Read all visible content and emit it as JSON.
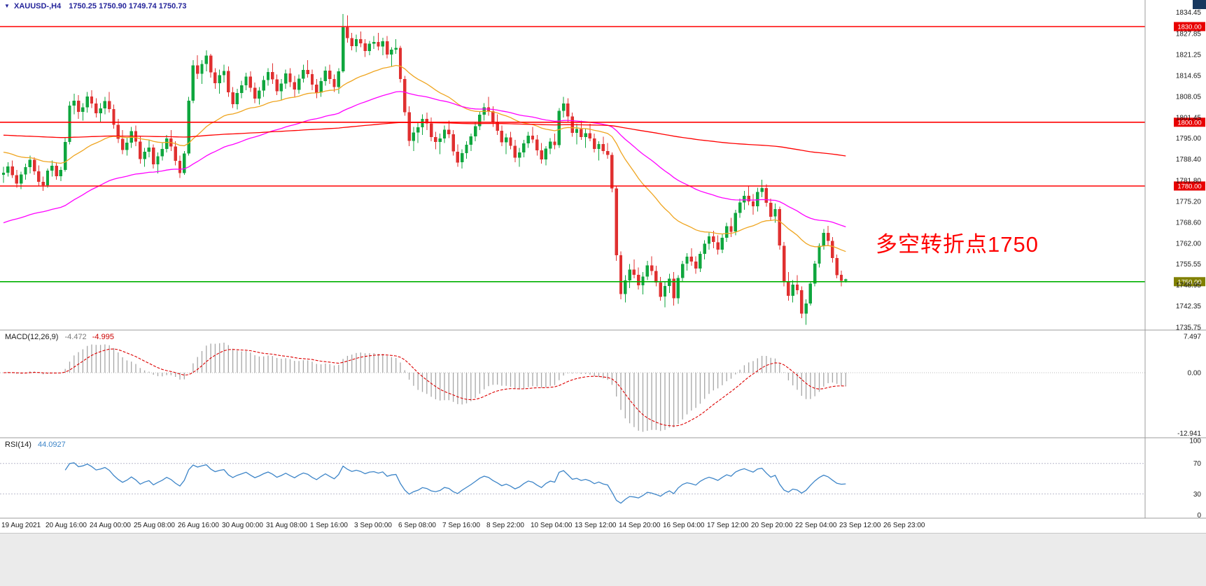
{
  "window": {
    "symbol_label": "XAUUSD-,H4",
    "ohlc_values": "1750.25 1750.90 1749.74 1750.73"
  },
  "annotation": {
    "text": "多空转折点1750",
    "color": "#ff0000"
  },
  "chart_data": {
    "type": "candlestick",
    "title": "XAUUSD- H4 chart with MACD and RSI",
    "symbol": "XAUUSD-",
    "timeframe": "H4",
    "last_ohlc": {
      "open": 1750.25,
      "high": 1750.9,
      "low": 1749.74,
      "close": 1750.73
    },
    "y_range": {
      "price_max": 1837,
      "price_min": 1735
    },
    "colors": {
      "bull": "#0fa63e",
      "bear": "#e03030",
      "background": "#ffffff",
      "separator": "#9c9c9c"
    },
    "price_axis_ticks": [
      "1834.45",
      "1827.85",
      "1821.25",
      "1814.65",
      "1808.05",
      "1801.45",
      "1795.00",
      "1788.40",
      "1781.80",
      "1775.20",
      "1768.60",
      "1762.00",
      "1755.55",
      "1748.95",
      "1742.35",
      "1735.75"
    ],
    "time_labels": [
      "19 Aug 2021",
      "20 Aug 16:00",
      "24 Aug 00:00",
      "25 Aug 08:00",
      "26 Aug 16:00",
      "30 Aug 00:00",
      "31 Aug 08:00",
      "1 Sep 16:00",
      "3 Sep 00:00",
      "6 Sep 08:00",
      "7 Sep 16:00",
      "8 Sep 22:00",
      "10 Sep 04:00",
      "13 Sep 12:00",
      "14 Sep 20:00",
      "16 Sep 04:00",
      "17 Sep 12:00",
      "20 Sep 20:00",
      "22 Sep 04:00",
      "23 Sep 12:00",
      "26 Sep 23:00"
    ],
    "hlines": [
      {
        "price": 1830.0,
        "label": "1830.00",
        "color": "#ff0000",
        "badge": "#e80000"
      },
      {
        "price": 1800.0,
        "label": "1800.00",
        "color": "#ff0000",
        "badge": "#e80000"
      },
      {
        "price": 1780.0,
        "label": "1780.00",
        "color": "#ff0000",
        "badge": "#e80000"
      },
      {
        "price": 1750.0,
        "label": "1750.00",
        "color": "#00b000",
        "badge": "#808000"
      }
    ],
    "moving_averages": [
      {
        "name": "ma-fast-orange",
        "period": 34,
        "seed": 1791,
        "color": "#efa520"
      },
      {
        "name": "ma-mid-magenta",
        "period": 70,
        "seed": 1768,
        "color": "#ff00ff"
      },
      {
        "name": "ma-slow-red",
        "period": 400,
        "seed": 1796,
        "color": "#ff0000"
      }
    ],
    "macd": {
      "label": "MACD(12,26,9)",
      "fast": 12,
      "slow": 26,
      "smoothing": 9,
      "value_main": "-4.472",
      "value_signal": "-4.995",
      "scale_labels": [
        "7.497",
        "0.00",
        "-12.941"
      ],
      "hist_color": "#a6a6a6",
      "signal_color": "#dd0000"
    },
    "rsi": {
      "label": "RSI(14)",
      "period": 14,
      "value": "44.0927",
      "scale_labels": [
        "100",
        "70",
        "30",
        "0"
      ],
      "levels": [
        70,
        30
      ],
      "color": "#3d85c8"
    },
    "candles": [
      [
        1783.5,
        1786.0,
        1781.0,
        1784.2
      ],
      [
        1784.2,
        1787.5,
        1783.0,
        1786.1
      ],
      [
        1786.1,
        1788.0,
        1782.5,
        1783.4
      ],
      [
        1783.4,
        1785.0,
        1779.5,
        1780.8
      ],
      [
        1780.8,
        1784.5,
        1779.0,
        1783.6
      ],
      [
        1783.6,
        1787.0,
        1782.0,
        1785.9
      ],
      [
        1785.9,
        1789.5,
        1784.0,
        1788.2
      ],
      [
        1788.2,
        1789.0,
        1783.5,
        1784.6
      ],
      [
        1784.6,
        1786.5,
        1780.0,
        1781.3
      ],
      [
        1781.3,
        1783.0,
        1778.5,
        1780.2
      ],
      [
        1780.2,
        1785.5,
        1779.5,
        1784.8
      ],
      [
        1784.8,
        1788.0,
        1783.0,
        1786.4
      ],
      [
        1786.4,
        1787.5,
        1782.0,
        1783.1
      ],
      [
        1783.1,
        1786.0,
        1781.5,
        1785.0
      ],
      [
        1785.0,
        1795.0,
        1784.5,
        1793.8
      ],
      [
        1793.8,
        1806.5,
        1793.0,
        1805.2
      ],
      [
        1805.2,
        1809.0,
        1802.5,
        1806.8
      ],
      [
        1806.8,
        1808.5,
        1801.0,
        1803.2
      ],
      [
        1803.2,
        1806.0,
        1800.5,
        1804.7
      ],
      [
        1804.7,
        1809.5,
        1803.0,
        1808.1
      ],
      [
        1808.1,
        1810.0,
        1804.5,
        1805.9
      ],
      [
        1805.9,
        1807.5,
        1801.5,
        1802.8
      ],
      [
        1802.8,
        1806.0,
        1800.0,
        1804.3
      ],
      [
        1804.3,
        1808.0,
        1802.5,
        1806.6
      ],
      [
        1806.6,
        1809.5,
        1803.0,
        1804.1
      ],
      [
        1804.1,
        1805.5,
        1798.0,
        1799.2
      ],
      [
        1799.2,
        1801.0,
        1793.5,
        1794.8
      ],
      [
        1794.8,
        1797.5,
        1790.0,
        1791.3
      ],
      [
        1791.3,
        1795.0,
        1789.5,
        1793.6
      ],
      [
        1793.6,
        1798.5,
        1792.0,
        1797.2
      ],
      [
        1797.2,
        1799.0,
        1792.5,
        1793.9
      ],
      [
        1793.9,
        1795.5,
        1787.0,
        1788.4
      ],
      [
        1788.4,
        1792.0,
        1786.0,
        1790.7
      ],
      [
        1790.7,
        1794.5,
        1789.0,
        1792.1
      ],
      [
        1792.1,
        1793.0,
        1785.5,
        1786.8
      ],
      [
        1786.8,
        1790.5,
        1784.0,
        1789.3
      ],
      [
        1789.3,
        1793.5,
        1788.0,
        1791.6
      ],
      [
        1791.6,
        1796.0,
        1790.5,
        1794.9
      ],
      [
        1794.9,
        1797.5,
        1791.0,
        1792.4
      ],
      [
        1792.4,
        1794.0,
        1786.5,
        1787.9
      ],
      [
        1787.9,
        1789.5,
        1782.5,
        1784.1
      ],
      [
        1784.1,
        1791.0,
        1783.5,
        1790.2
      ],
      [
        1790.2,
        1808.0,
        1789.5,
        1806.7
      ],
      [
        1806.7,
        1819.5,
        1806.0,
        1817.8
      ],
      [
        1817.8,
        1821.0,
        1813.5,
        1815.2
      ],
      [
        1815.2,
        1819.5,
        1812.0,
        1818.3
      ],
      [
        1818.3,
        1822.5,
        1816.0,
        1820.9
      ],
      [
        1820.9,
        1821.5,
        1814.0,
        1815.6
      ],
      [
        1815.6,
        1817.0,
        1810.5,
        1812.2
      ],
      [
        1812.2,
        1816.5,
        1809.0,
        1814.8
      ],
      [
        1814.8,
        1818.0,
        1812.5,
        1816.1
      ],
      [
        1816.1,
        1817.5,
        1808.0,
        1809.4
      ],
      [
        1809.4,
        1811.0,
        1804.5,
        1805.7
      ],
      [
        1805.7,
        1810.5,
        1804.0,
        1809.2
      ],
      [
        1809.2,
        1813.0,
        1807.5,
        1811.6
      ],
      [
        1811.6,
        1815.5,
        1810.0,
        1814.3
      ],
      [
        1814.3,
        1816.0,
        1809.5,
        1810.8
      ],
      [
        1810.8,
        1812.5,
        1806.0,
        1807.4
      ],
      [
        1807.4,
        1811.0,
        1805.5,
        1809.9
      ],
      [
        1809.9,
        1814.5,
        1808.0,
        1813.2
      ],
      [
        1813.2,
        1817.0,
        1811.5,
        1815.8
      ],
      [
        1815.8,
        1818.5,
        1812.0,
        1813.4
      ],
      [
        1813.4,
        1815.0,
        1808.5,
        1809.7
      ],
      [
        1809.7,
        1813.5,
        1807.0,
        1812.1
      ],
      [
        1812.1,
        1816.5,
        1810.5,
        1815.3
      ],
      [
        1815.3,
        1817.0,
        1811.0,
        1812.6
      ],
      [
        1812.6,
        1814.5,
        1808.0,
        1810.2
      ],
      [
        1810.2,
        1815.0,
        1809.0,
        1813.7
      ],
      [
        1813.7,
        1818.0,
        1812.5,
        1816.4
      ],
      [
        1816.4,
        1819.5,
        1814.0,
        1815.1
      ],
      [
        1815.1,
        1816.5,
        1810.0,
        1811.8
      ],
      [
        1811.8,
        1813.5,
        1807.5,
        1809.3
      ],
      [
        1809.3,
        1814.0,
        1808.0,
        1812.9
      ],
      [
        1812.9,
        1817.5,
        1811.5,
        1816.2
      ],
      [
        1816.2,
        1818.0,
        1812.0,
        1813.5
      ],
      [
        1813.5,
        1815.0,
        1809.5,
        1811.0
      ],
      [
        1811.0,
        1817.0,
        1809.0,
        1816.0
      ],
      [
        1816.0,
        1834.0,
        1815.5,
        1829.8
      ],
      [
        1829.8,
        1833.5,
        1825.0,
        1826.4
      ],
      [
        1826.4,
        1828.0,
        1822.5,
        1823.9
      ],
      [
        1823.9,
        1827.5,
        1822.0,
        1826.1
      ],
      [
        1826.1,
        1828.5,
        1823.5,
        1824.7
      ],
      [
        1824.7,
        1826.0,
        1820.5,
        1822.3
      ],
      [
        1822.3,
        1825.5,
        1821.0,
        1824.6
      ],
      [
        1824.6,
        1827.0,
        1823.0,
        1825.2
      ],
      [
        1825.2,
        1828.0,
        1822.5,
        1823.8
      ],
      [
        1823.8,
        1826.5,
        1821.0,
        1825.4
      ],
      [
        1825.4,
        1827.0,
        1820.0,
        1821.2
      ],
      [
        1821.2,
        1823.5,
        1817.5,
        1822.8
      ],
      [
        1822.8,
        1826.0,
        1821.5,
        1823.3
      ],
      [
        1823.3,
        1824.0,
        1812.5,
        1813.6
      ],
      [
        1813.6,
        1814.5,
        1802.0,
        1803.1
      ],
      [
        1803.1,
        1805.0,
        1792.5,
        1794.2
      ],
      [
        1794.2,
        1798.5,
        1791.0,
        1796.8
      ],
      [
        1796.8,
        1800.0,
        1793.5,
        1798.4
      ],
      [
        1798.4,
        1802.5,
        1796.0,
        1801.1
      ],
      [
        1801.1,
        1803.0,
        1797.5,
        1799.6
      ],
      [
        1799.6,
        1801.5,
        1794.0,
        1795.3
      ],
      [
        1795.3,
        1797.0,
        1791.5,
        1793.8
      ],
      [
        1793.8,
        1796.5,
        1790.0,
        1794.9
      ],
      [
        1794.9,
        1799.0,
        1793.5,
        1797.7
      ],
      [
        1797.7,
        1800.5,
        1795.0,
        1796.2
      ],
      [
        1796.2,
        1797.5,
        1789.5,
        1790.8
      ],
      [
        1790.8,
        1793.0,
        1786.0,
        1787.4
      ],
      [
        1787.4,
        1791.5,
        1785.5,
        1790.3
      ],
      [
        1790.3,
        1794.0,
        1788.5,
        1792.9
      ],
      [
        1792.9,
        1796.5,
        1791.0,
        1795.6
      ],
      [
        1795.6,
        1800.0,
        1794.0,
        1798.8
      ],
      [
        1798.8,
        1803.5,
        1797.5,
        1802.4
      ],
      [
        1802.4,
        1806.0,
        1800.5,
        1804.7
      ],
      [
        1804.7,
        1808.0,
        1802.0,
        1803.5
      ],
      [
        1803.5,
        1805.0,
        1798.5,
        1800.1
      ],
      [
        1800.1,
        1802.5,
        1796.0,
        1797.3
      ],
      [
        1797.3,
        1799.0,
        1792.5,
        1793.7
      ],
      [
        1793.7,
        1796.5,
        1790.0,
        1795.2
      ],
      [
        1795.2,
        1797.0,
        1791.5,
        1792.6
      ],
      [
        1792.6,
        1794.5,
        1787.5,
        1788.9
      ],
      [
        1788.9,
        1792.0,
        1786.0,
        1790.5
      ],
      [
        1790.5,
        1794.5,
        1789.0,
        1793.4
      ],
      [
        1793.4,
        1797.0,
        1792.0,
        1795.8
      ],
      [
        1795.8,
        1798.5,
        1793.5,
        1794.6
      ],
      [
        1794.6,
        1796.0,
        1789.5,
        1791.2
      ],
      [
        1791.2,
        1793.5,
        1787.0,
        1788.3
      ],
      [
        1788.3,
        1792.5,
        1786.5,
        1791.7
      ],
      [
        1791.7,
        1795.0,
        1790.0,
        1793.9
      ],
      [
        1793.9,
        1796.5,
        1791.5,
        1792.8
      ],
      [
        1792.8,
        1804.5,
        1792.0,
        1803.6
      ],
      [
        1803.6,
        1808.0,
        1801.5,
        1805.9
      ],
      [
        1805.9,
        1807.5,
        1800.0,
        1801.8
      ],
      [
        1801.8,
        1803.0,
        1795.5,
        1796.7
      ],
      [
        1796.7,
        1799.5,
        1793.0,
        1797.9
      ],
      [
        1797.9,
        1800.5,
        1794.5,
        1795.4
      ],
      [
        1795.4,
        1798.0,
        1792.0,
        1796.6
      ],
      [
        1796.6,
        1799.5,
        1794.0,
        1794.9
      ],
      [
        1794.9,
        1796.5,
        1790.5,
        1791.6
      ],
      [
        1791.6,
        1794.0,
        1788.0,
        1793.2
      ],
      [
        1793.2,
        1795.5,
        1790.0,
        1791.0
      ],
      [
        1791.0,
        1793.5,
        1788.5,
        1789.8
      ],
      [
        1789.8,
        1790.5,
        1778.0,
        1779.2
      ],
      [
        1779.2,
        1780.0,
        1756.5,
        1758.3
      ],
      [
        1758.3,
        1759.5,
        1744.5,
        1746.1
      ],
      [
        1746.1,
        1752.0,
        1743.5,
        1750.4
      ],
      [
        1750.4,
        1755.5,
        1748.0,
        1753.8
      ],
      [
        1753.8,
        1757.0,
        1751.0,
        1752.2
      ],
      [
        1752.2,
        1754.5,
        1747.5,
        1748.9
      ],
      [
        1748.9,
        1753.0,
        1746.0,
        1751.6
      ],
      [
        1751.6,
        1756.5,
        1750.5,
        1755.1
      ],
      [
        1755.1,
        1758.0,
        1752.0,
        1753.4
      ],
      [
        1753.4,
        1755.0,
        1748.5,
        1749.7
      ],
      [
        1749.7,
        1751.5,
        1744.0,
        1745.3
      ],
      [
        1745.3,
        1750.0,
        1742.0,
        1748.6
      ],
      [
        1748.6,
        1752.5,
        1746.5,
        1750.9
      ],
      [
        1750.9,
        1753.0,
        1742.5,
        1744.8
      ],
      [
        1744.8,
        1752.0,
        1743.0,
        1751.2
      ],
      [
        1751.2,
        1756.5,
        1750.0,
        1755.6
      ],
      [
        1755.6,
        1759.0,
        1753.5,
        1757.8
      ],
      [
        1757.8,
        1760.5,
        1755.0,
        1756.3
      ],
      [
        1756.3,
        1758.0,
        1752.5,
        1754.1
      ],
      [
        1754.1,
        1759.5,
        1753.0,
        1758.7
      ],
      [
        1758.7,
        1763.0,
        1757.0,
        1761.9
      ],
      [
        1761.9,
        1765.5,
        1760.0,
        1764.2
      ],
      [
        1764.2,
        1766.0,
        1760.5,
        1762.4
      ],
      [
        1762.4,
        1764.5,
        1758.5,
        1760.1
      ],
      [
        1760.1,
        1765.0,
        1759.0,
        1763.8
      ],
      [
        1763.8,
        1768.5,
        1762.5,
        1767.4
      ],
      [
        1767.4,
        1770.0,
        1764.0,
        1765.7
      ],
      [
        1765.7,
        1772.5,
        1764.5,
        1771.6
      ],
      [
        1771.6,
        1776.0,
        1770.0,
        1774.8
      ],
      [
        1774.8,
        1778.5,
        1772.5,
        1776.9
      ],
      [
        1776.9,
        1780.0,
        1774.0,
        1775.2
      ],
      [
        1775.2,
        1777.5,
        1771.0,
        1773.6
      ],
      [
        1773.6,
        1779.5,
        1772.0,
        1778.1
      ],
      [
        1778.1,
        1782.0,
        1776.5,
        1779.3
      ],
      [
        1779.3,
        1780.5,
        1773.5,
        1774.7
      ],
      [
        1774.7,
        1776.0,
        1769.0,
        1770.4
      ],
      [
        1770.4,
        1774.5,
        1768.5,
        1772.8
      ],
      [
        1772.8,
        1773.5,
        1760.0,
        1761.3
      ],
      [
        1761.3,
        1762.5,
        1748.5,
        1750.2
      ],
      [
        1750.2,
        1753.0,
        1744.0,
        1745.6
      ],
      [
        1745.6,
        1750.5,
        1743.5,
        1749.1
      ],
      [
        1749.1,
        1752.0,
        1746.0,
        1747.3
      ],
      [
        1747.3,
        1748.5,
        1738.5,
        1740.0
      ],
      [
        1740.0,
        1744.5,
        1736.5,
        1743.2
      ],
      [
        1743.2,
        1750.0,
        1742.5,
        1749.4
      ],
      [
        1749.4,
        1756.5,
        1748.5,
        1755.7
      ],
      [
        1755.7,
        1762.0,
        1754.5,
        1761.2
      ],
      [
        1761.2,
        1766.5,
        1760.0,
        1765.3
      ],
      [
        1765.3,
        1767.5,
        1761.5,
        1762.8
      ],
      [
        1762.8,
        1764.0,
        1756.0,
        1757.4
      ],
      [
        1757.4,
        1758.5,
        1751.0,
        1752.1
      ],
      [
        1752.1,
        1753.5,
        1748.5,
        1750.25
      ],
      [
        1750.25,
        1750.9,
        1749.74,
        1750.73
      ]
    ]
  }
}
